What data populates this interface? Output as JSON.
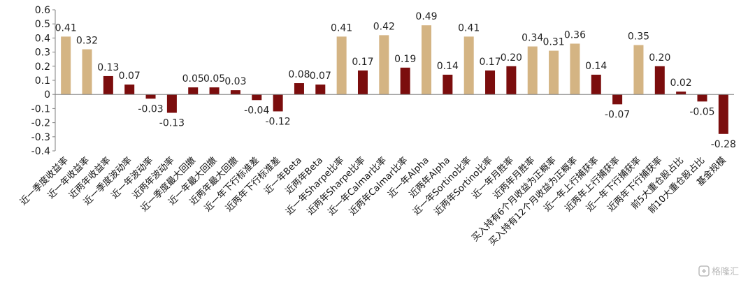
{
  "chart_data": {
    "type": "bar",
    "title": "",
    "xlabel": "",
    "ylabel": "",
    "ylim": [
      -0.4,
      0.6
    ],
    "yticks": [
      "0.6",
      "0.5",
      "0.4",
      "0.3",
      "0.2",
      "0.1",
      "0",
      "-0.1",
      "-0.2",
      "-0.3",
      "-0.4"
    ],
    "grid": false,
    "legend": "none",
    "colors": {
      "tan": "#d4b483",
      "dark": "#7b0d0d"
    },
    "categories": [
      "近一季度收益率",
      "近一年收益率",
      "近两年收益率",
      "近一季度波动率",
      "近一年波动率",
      "近两年波动率",
      "近一季度最大回撤",
      "近一年最大回撤",
      "近两年最大回撤",
      "近一年下行标准差",
      "近两年下行标准差",
      "近一年Beta",
      "近两年Beta",
      "近一年Sharpe比率",
      "近两年Sharpe比率",
      "近一年Calmar比率",
      "近两年Calmar比率",
      "近一年Alpha",
      "近两年Alpha",
      "近一年Sortino比率",
      "近两年Sortino比率",
      "近一年月胜率",
      "近两年月胜率",
      "买入持有6个月收益为正概率",
      "买入持有12个月收益为正概率",
      "近一年上行捕获率",
      "近两年上行捕获率",
      "近一年下行捕获率",
      "近两年下行捕获率",
      "前5大重仓股占比",
      "前10大重仓股占比",
      "基金规模"
    ],
    "values": [
      0.41,
      0.32,
      0.13,
      0.07,
      -0.03,
      -0.13,
      0.05,
      0.05,
      0.03,
      -0.04,
      -0.12,
      0.08,
      0.07,
      0.41,
      0.17,
      0.42,
      0.19,
      0.49,
      0.14,
      0.41,
      0.17,
      0.2,
      0.34,
      0.31,
      0.36,
      0.14,
      -0.07,
      0.35,
      0.2,
      0.02,
      -0.05,
      -0.28
    ],
    "value_labels": [
      "0.41",
      "0.32",
      "0.13",
      "0.07",
      "-0.03",
      "-0.13",
      "0.05",
      "0.05",
      "0.03",
      "-0.04",
      "-0.12",
      "0.08",
      "0.07",
      "0.41",
      "0.17",
      "0.42",
      "0.19",
      "0.49",
      "0.14",
      "0.41",
      "0.17",
      "0.20",
      "0.34",
      "0.31",
      "0.36",
      "0.14",
      "-0.07",
      "0.35",
      "0.20",
      "0.02",
      "-0.05",
      "-0.28"
    ],
    "bar_colors": [
      "tan",
      "tan",
      "dark",
      "dark",
      "dark",
      "dark",
      "dark",
      "dark",
      "dark",
      "dark",
      "dark",
      "dark",
      "dark",
      "tan",
      "dark",
      "tan",
      "dark",
      "tan",
      "dark",
      "tan",
      "dark",
      "dark",
      "tan",
      "tan",
      "tan",
      "dark",
      "dark",
      "tan",
      "dark",
      "dark",
      "dark",
      "dark"
    ]
  },
  "watermark": {
    "text": "格隆汇",
    "icon": "gelonghui-logo-icon"
  }
}
